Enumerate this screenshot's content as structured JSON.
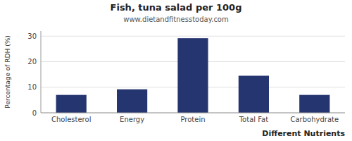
{
  "chart_data": {
    "type": "bar",
    "title": "Fish, tuna salad per 100g",
    "subtitle": "www.dietandfitnesstoday.com",
    "xlabel": "Different Nutrients",
    "ylabel": "Percentage of RDH (%)",
    "categories": [
      "Cholesterol",
      "Energy",
      "Protein",
      "Total Fat",
      "Carbohydrate"
    ],
    "values": [
      7.0,
      9.2,
      29.2,
      14.5,
      7.0
    ],
    "color": "#253570",
    "ylim": [
      0,
      32
    ],
    "yticks": [
      0,
      10,
      20,
      30
    ],
    "grid": true
  }
}
